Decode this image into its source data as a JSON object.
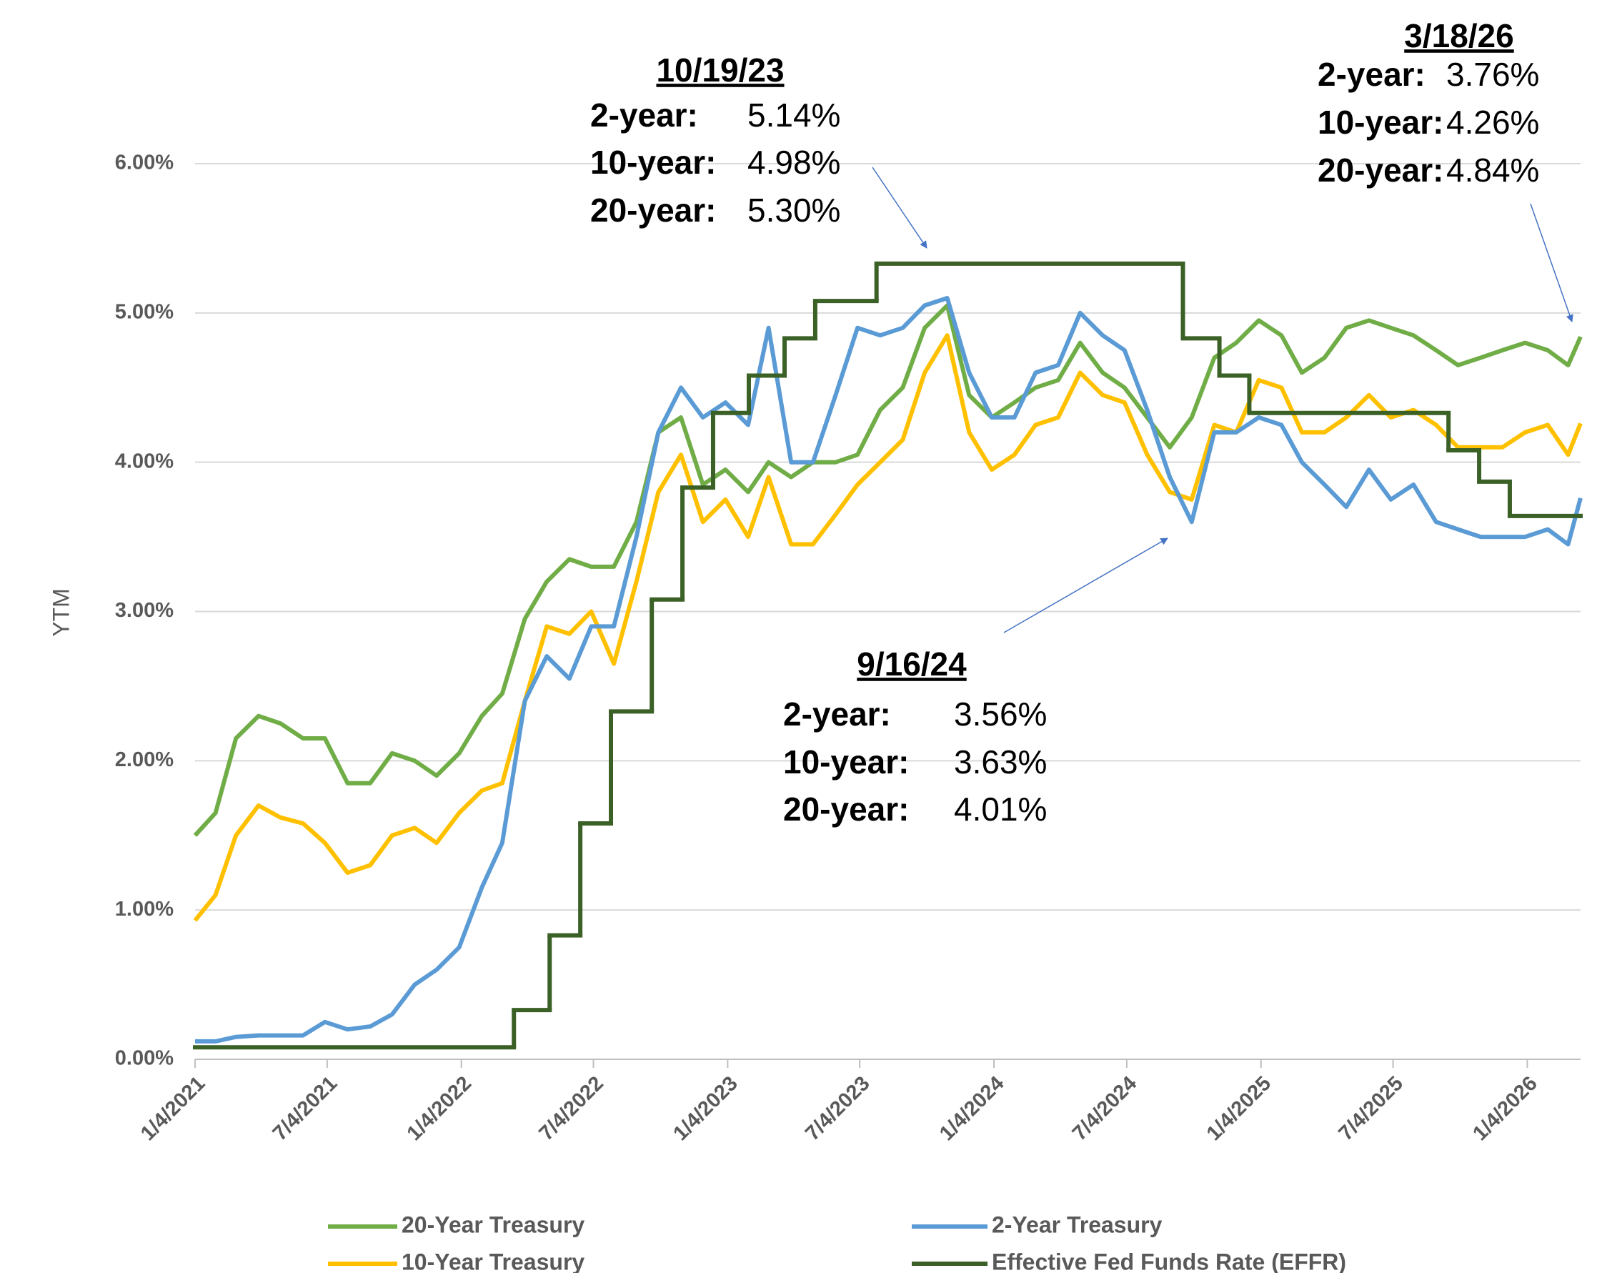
{
  "chart_data": {
    "type": "line",
    "y_label": "YTM",
    "xlim": [
      "1/4/2021",
      "3/18/2026"
    ],
    "xticks": [
      "1/4/2021",
      "7/4/2021",
      "1/4/2022",
      "7/4/2022",
      "1/4/2023",
      "7/4/2023",
      "1/4/2024",
      "7/4/2024",
      "1/4/2025",
      "7/4/2025",
      "1/4/2026"
    ],
    "ylim": [
      0,
      6
    ],
    "yticks": [
      {
        "value": 0,
        "label": "0.00%"
      },
      {
        "value": 1,
        "label": "1.00%"
      },
      {
        "value": 2,
        "label": "2.00%"
      },
      {
        "value": 3,
        "label": "3.00%"
      },
      {
        "value": 4,
        "label": "4.00%"
      },
      {
        "value": 5,
        "label": "5.00%"
      },
      {
        "value": 6,
        "label": "6.00%"
      }
    ],
    "grid": true,
    "legend": "bottom",
    "x": [
      "1/4/2021",
      "2/1/2021",
      "3/1/2021",
      "4/1/2021",
      "5/1/2021",
      "6/1/2021",
      "7/1/2021",
      "8/1/2021",
      "9/1/2021",
      "10/1/2021",
      "11/1/2021",
      "12/1/2021",
      "1/1/2022",
      "2/1/2022",
      "3/1/2022",
      "4/1/2022",
      "5/1/2022",
      "6/1/2022",
      "7/1/2022",
      "8/1/2022",
      "9/1/2022",
      "10/1/2022",
      "11/1/2022",
      "12/1/2022",
      "1/1/2023",
      "2/1/2023",
      "3/1/2023",
      "4/1/2023",
      "5/1/2023",
      "6/1/2023",
      "7/1/2023",
      "8/1/2023",
      "9/1/2023",
      "10/1/2023",
      "11/1/2023",
      "12/1/2023",
      "1/1/2024",
      "2/1/2024",
      "3/1/2024",
      "4/1/2024",
      "5/1/2024",
      "6/1/2024",
      "7/1/2024",
      "8/1/2024",
      "9/1/2024",
      "10/1/2024",
      "11/1/2024",
      "12/1/2024",
      "1/1/2025",
      "2/1/2025",
      "3/1/2025",
      "4/1/2025",
      "5/1/2025",
      "6/1/2025",
      "7/1/2025",
      "8/1/2025",
      "9/1/2025",
      "10/1/2025",
      "11/1/2025",
      "12/1/2025",
      "1/1/2026",
      "2/1/2026",
      "3/1/2026",
      "3/18/2026"
    ],
    "series": [
      {
        "name": "20-Year Treasury",
        "color": "#70ad47",
        "values": [
          1.5,
          1.65,
          2.15,
          2.3,
          2.25,
          2.15,
          2.15,
          1.85,
          1.85,
          2.05,
          2.0,
          1.9,
          2.05,
          2.3,
          2.45,
          2.95,
          3.2,
          3.35,
          3.3,
          3.3,
          3.6,
          4.2,
          4.3,
          3.85,
          3.95,
          3.8,
          4.0,
          3.9,
          4.0,
          4.0,
          4.05,
          4.35,
          4.5,
          4.9,
          5.05,
          4.45,
          4.3,
          4.4,
          4.5,
          4.55,
          4.8,
          4.6,
          4.5,
          4.3,
          4.1,
          4.3,
          4.7,
          4.8,
          4.95,
          4.85,
          4.6,
          4.7,
          4.9,
          4.95,
          4.9,
          4.85,
          4.75,
          4.65,
          4.7,
          4.75,
          4.8,
          4.75,
          4.65,
          4.84
        ]
      },
      {
        "name": "2-Year Treasury",
        "color": "#5b9bd5",
        "values": [
          0.12,
          0.12,
          0.15,
          0.16,
          0.16,
          0.16,
          0.25,
          0.2,
          0.22,
          0.3,
          0.5,
          0.6,
          0.75,
          1.15,
          1.45,
          2.4,
          2.7,
          2.55,
          2.9,
          2.9,
          3.5,
          4.2,
          4.5,
          4.3,
          4.4,
          4.25,
          4.9,
          4.0,
          4.0,
          4.45,
          4.9,
          4.85,
          4.9,
          5.05,
          5.1,
          4.6,
          4.3,
          4.3,
          4.6,
          4.65,
          5.0,
          4.85,
          4.75,
          4.35,
          3.9,
          3.6,
          4.2,
          4.2,
          4.3,
          4.25,
          4.0,
          3.85,
          3.7,
          3.95,
          3.75,
          3.85,
          3.6,
          3.55,
          3.5,
          3.5,
          3.5,
          3.55,
          3.45,
          3.76
        ]
      },
      {
        "name": "10-Year Treasury",
        "color": "#ffc000",
        "values": [
          0.93,
          1.1,
          1.5,
          1.7,
          1.62,
          1.58,
          1.45,
          1.25,
          1.3,
          1.5,
          1.55,
          1.45,
          1.65,
          1.8,
          1.85,
          2.4,
          2.9,
          2.85,
          3.0,
          2.65,
          3.2,
          3.8,
          4.05,
          3.6,
          3.75,
          3.5,
          3.9,
          3.45,
          3.45,
          3.65,
          3.85,
          4.0,
          4.15,
          4.6,
          4.85,
          4.2,
          3.95,
          4.05,
          4.25,
          4.3,
          4.6,
          4.45,
          4.4,
          4.05,
          3.8,
          3.75,
          4.25,
          4.2,
          4.55,
          4.5,
          4.2,
          4.2,
          4.3,
          4.45,
          4.3,
          4.35,
          4.25,
          4.1,
          4.1,
          4.1,
          4.2,
          4.25,
          4.05,
          4.26
        ]
      },
      {
        "name": "Effective Fed Funds Rate (EFFR)",
        "color": "#3b6127",
        "step": true,
        "x": [
          "1/4/2021",
          "3/17/2022",
          "5/5/2022",
          "6/16/2022",
          "7/28/2022",
          "9/22/2022",
          "11/3/2022",
          "12/15/2022",
          "2/2/2023",
          "3/23/2023",
          "5/4/2023",
          "7/27/2023",
          "9/19/2024",
          "11/8/2024",
          "12/19/2024",
          "9/18/2025",
          "10/30/2025",
          "12/11/2025",
          "3/18/2026"
        ],
        "values": [
          0.08,
          0.33,
          0.83,
          1.58,
          2.33,
          3.08,
          3.83,
          4.33,
          4.58,
          4.83,
          5.08,
          5.33,
          4.83,
          4.58,
          4.33,
          4.08,
          3.87,
          3.64,
          3.64
        ]
      }
    ],
    "annotations": [
      {
        "title": "10/19/23",
        "rows": [
          [
            "2-year:",
            "5.14%"
          ],
          [
            "10-year:",
            "4.98%"
          ],
          [
            "20-year:",
            "5.30%"
          ]
        ]
      },
      {
        "title": "9/16/24",
        "rows": [
          [
            "2-year:",
            "3.56%"
          ],
          [
            "10-year:",
            "3.63%"
          ],
          [
            "20-year:",
            "4.01%"
          ]
        ]
      },
      {
        "title": "3/18/26",
        "rows": [
          [
            "2-year:",
            "3.76%"
          ],
          [
            "10-year:",
            "4.26%"
          ],
          [
            "20-year:",
            "4.84%"
          ]
        ]
      }
    ]
  }
}
